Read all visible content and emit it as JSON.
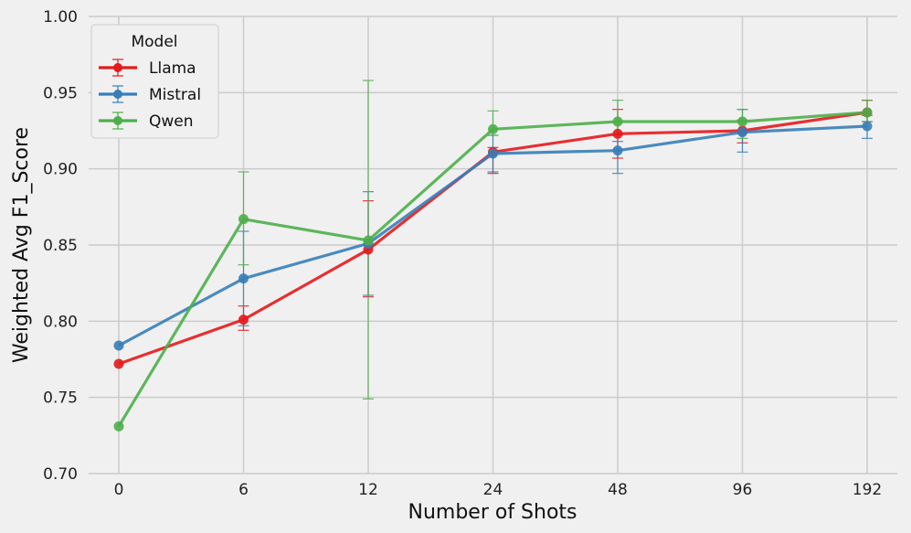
{
  "chart_data": {
    "type": "line",
    "xlabel": "Number of Shots",
    "ylabel": "Weighted Avg F1_Score",
    "categories": [
      "0",
      "6",
      "12",
      "24",
      "48",
      "96",
      "192"
    ],
    "ylim": [
      0.7,
      1.0
    ],
    "yticks": [
      "0.70",
      "0.75",
      "0.80",
      "0.85",
      "0.90",
      "0.95",
      "1.00"
    ],
    "grid": true,
    "legend": {
      "title": "Model",
      "position": "top-left"
    },
    "series": [
      {
        "name": "Llama",
        "color": "#e41a1c",
        "values": [
          0.772,
          0.801,
          0.847,
          0.911,
          0.923,
          0.925,
          0.937
        ],
        "err_low": [
          0.772,
          0.794,
          0.816,
          0.897,
          0.907,
          0.917,
          0.931
        ],
        "err_high": [
          0.772,
          0.81,
          0.879,
          0.914,
          0.939,
          0.932,
          0.945
        ]
      },
      {
        "name": "Mistral",
        "color": "#377eb8",
        "values": [
          0.784,
          0.828,
          0.851,
          0.91,
          0.912,
          0.924,
          0.928
        ],
        "err_low": [
          0.784,
          0.797,
          0.817,
          0.898,
          0.897,
          0.911,
          0.92
        ],
        "err_high": [
          0.784,
          0.859,
          0.885,
          0.922,
          0.918,
          0.939,
          0.935
        ]
      },
      {
        "name": "Qwen",
        "color": "#4daf4a",
        "values": [
          0.731,
          0.867,
          0.853,
          0.926,
          0.931,
          0.931,
          0.937
        ],
        "err_low": [
          0.731,
          0.837,
          0.749,
          0.922,
          0.922,
          0.92,
          0.931
        ],
        "err_high": [
          0.731,
          0.898,
          0.958,
          0.938,
          0.945,
          0.939,
          0.945
        ]
      }
    ]
  }
}
